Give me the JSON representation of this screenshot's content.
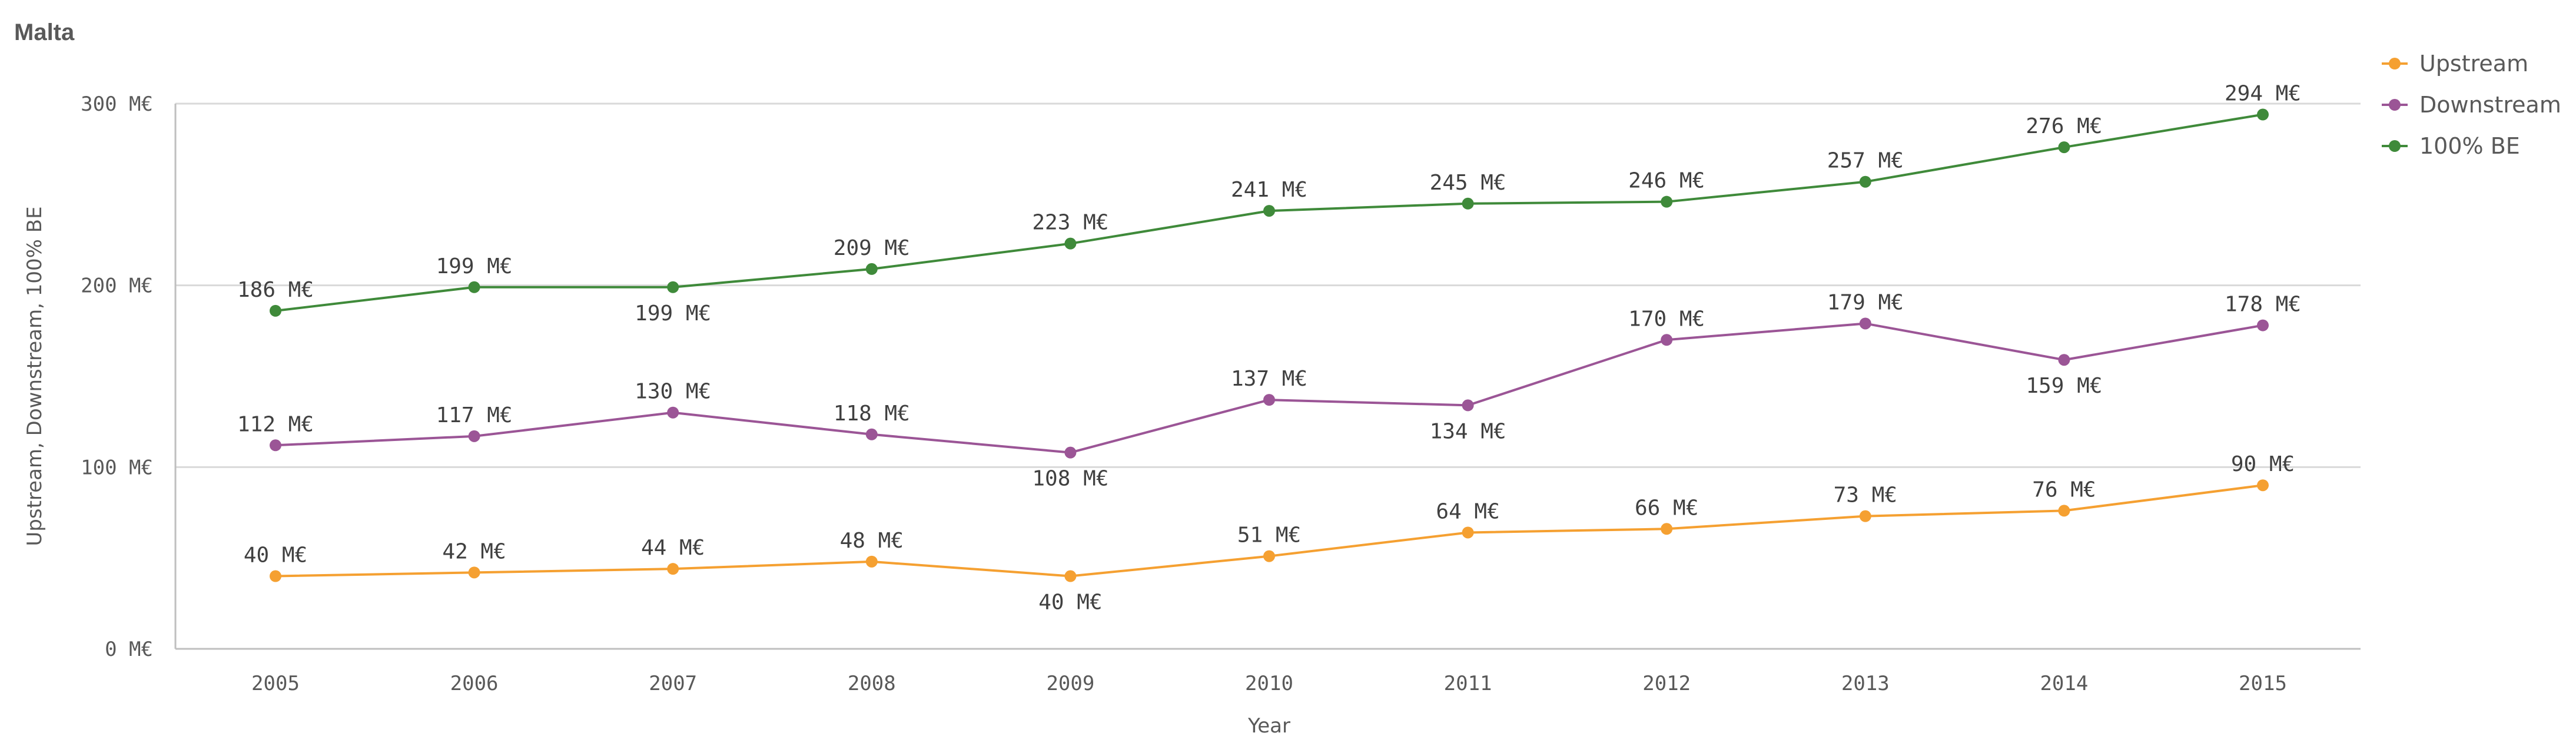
{
  "title": "Malta",
  "chart_data": {
    "type": "line",
    "title": "Malta",
    "xlabel": "Year",
    "ylabel": "Upstream, Downstream, 100% BE",
    "categories": [
      "2005",
      "2006",
      "2007",
      "2008",
      "2009",
      "2010",
      "2011",
      "2012",
      "2013",
      "2014",
      "2015"
    ],
    "ylim": [
      0,
      300
    ],
    "yticks": [
      0,
      100,
      200,
      300
    ],
    "ytick_labels": [
      "0 M€",
      "100 M€",
      "200 M€",
      "300 M€"
    ],
    "value_suffix": " M€",
    "grid": true,
    "legend": "top-right",
    "series": [
      {
        "name": "Upstream",
        "color": "#f5a031",
        "values": [
          40,
          42,
          44,
          48,
          40,
          51,
          64,
          66,
          73,
          76,
          90
        ],
        "label_pos": [
          "above",
          "above",
          "above",
          "above",
          "below",
          "above",
          "above",
          "above",
          "above",
          "above",
          "above"
        ]
      },
      {
        "name": "Downstream",
        "color": "#9b5596",
        "values": [
          112,
          117,
          130,
          118,
          108,
          137,
          134,
          170,
          179,
          159,
          178
        ],
        "label_pos": [
          "above",
          "above",
          "above",
          "above",
          "below",
          "above",
          "below",
          "above",
          "above",
          "below",
          "above"
        ]
      },
      {
        "name": "100% BE",
        "color": "#3f8a3a",
        "values": [
          186,
          199,
          199,
          209,
          223,
          241,
          245,
          246,
          257,
          276,
          294
        ],
        "label_pos": [
          "above",
          "above",
          "below",
          "above",
          "above",
          "above",
          "above",
          "above",
          "above",
          "above",
          "above"
        ]
      }
    ]
  }
}
